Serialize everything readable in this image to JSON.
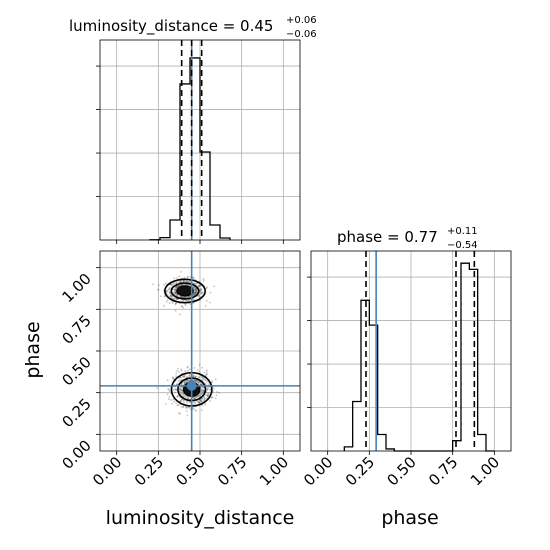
{
  "chart_data": {
    "type": "corner",
    "parameters": [
      "luminosity_distance",
      "phase"
    ],
    "truths": {
      "luminosity_distance": 0.45,
      "phase": 0.2908
    },
    "panels": [
      {
        "id": "hist-luminosity-distance",
        "type": "histogram",
        "parameter": "luminosity_distance",
        "title_main": "luminosity_distance = 0.45",
        "title_plus": "+0.06",
        "title_minus": "−0.06",
        "xlim": [
          -0.1,
          1.1
        ],
        "bin_edges": [
          0.2,
          0.26,
          0.32,
          0.38,
          0.44,
          0.5,
          0.56,
          0.62,
          0.68
        ],
        "counts": [
          1,
          12,
          100,
          780,
          910,
          440,
          75,
          10
        ],
        "ymax": 980,
        "quantiles": [
          0.39,
          0.45,
          0.51
        ],
        "grid": true
      },
      {
        "id": "hist-phase",
        "type": "histogram",
        "parameter": "phase",
        "title_main": "phase = 0.77",
        "title_plus": "+0.11",
        "title_minus": "−0.54",
        "xlim": [
          -0.1,
          1.1
        ],
        "xticks": [
          "0.00",
          "0.25",
          "0.50",
          "0.75",
          "1.00"
        ],
        "xtick_values": [
          0,
          0.25,
          0.5,
          0.75,
          1.0
        ],
        "xlabel": "phase",
        "bin_edges": [
          0.1,
          0.15,
          0.2,
          0.25,
          0.3,
          0.35,
          0.4,
          0.45,
          0.5,
          0.55,
          0.6,
          0.65,
          0.7,
          0.75,
          0.8,
          0.85,
          0.9,
          0.95,
          1.0
        ],
        "counts": [
          2,
          24,
          73,
          61,
          8,
          1,
          0,
          0,
          0,
          0,
          0,
          0,
          0,
          5,
          91,
          88,
          8,
          0
        ],
        "ymax": 95,
        "quantiles": [
          0.23,
          0.77,
          0.88
        ],
        "grid": true
      },
      {
        "id": "scatter-phase-vs-luminosity-distance",
        "type": "2d-density",
        "x_parameter": "luminosity_distance",
        "y_parameter": "phase",
        "xlim": [
          -0.1,
          1.1
        ],
        "ylim": [
          -0.1,
          1.1
        ],
        "xticks": [
          "0.00",
          "0.25",
          "0.50",
          "0.75",
          "1.00"
        ],
        "xtick_values": [
          0,
          0.25,
          0.5,
          0.75,
          1.0
        ],
        "yticks": [
          "0.00",
          "0.25",
          "0.50",
          "0.75",
          "1.00"
        ],
        "ytick_values": [
          0,
          0.25,
          0.5,
          0.75,
          1.0
        ],
        "xlabel": "luminosity_distance",
        "ylabel": "phase",
        "modes": [
          {
            "x": 0.41,
            "y": 0.86,
            "sx": 0.055,
            "sy": 0.035
          },
          {
            "x": 0.45,
            "y": 0.27,
            "sx": 0.055,
            "sy": 0.05
          }
        ],
        "grid": true
      }
    ]
  }
}
